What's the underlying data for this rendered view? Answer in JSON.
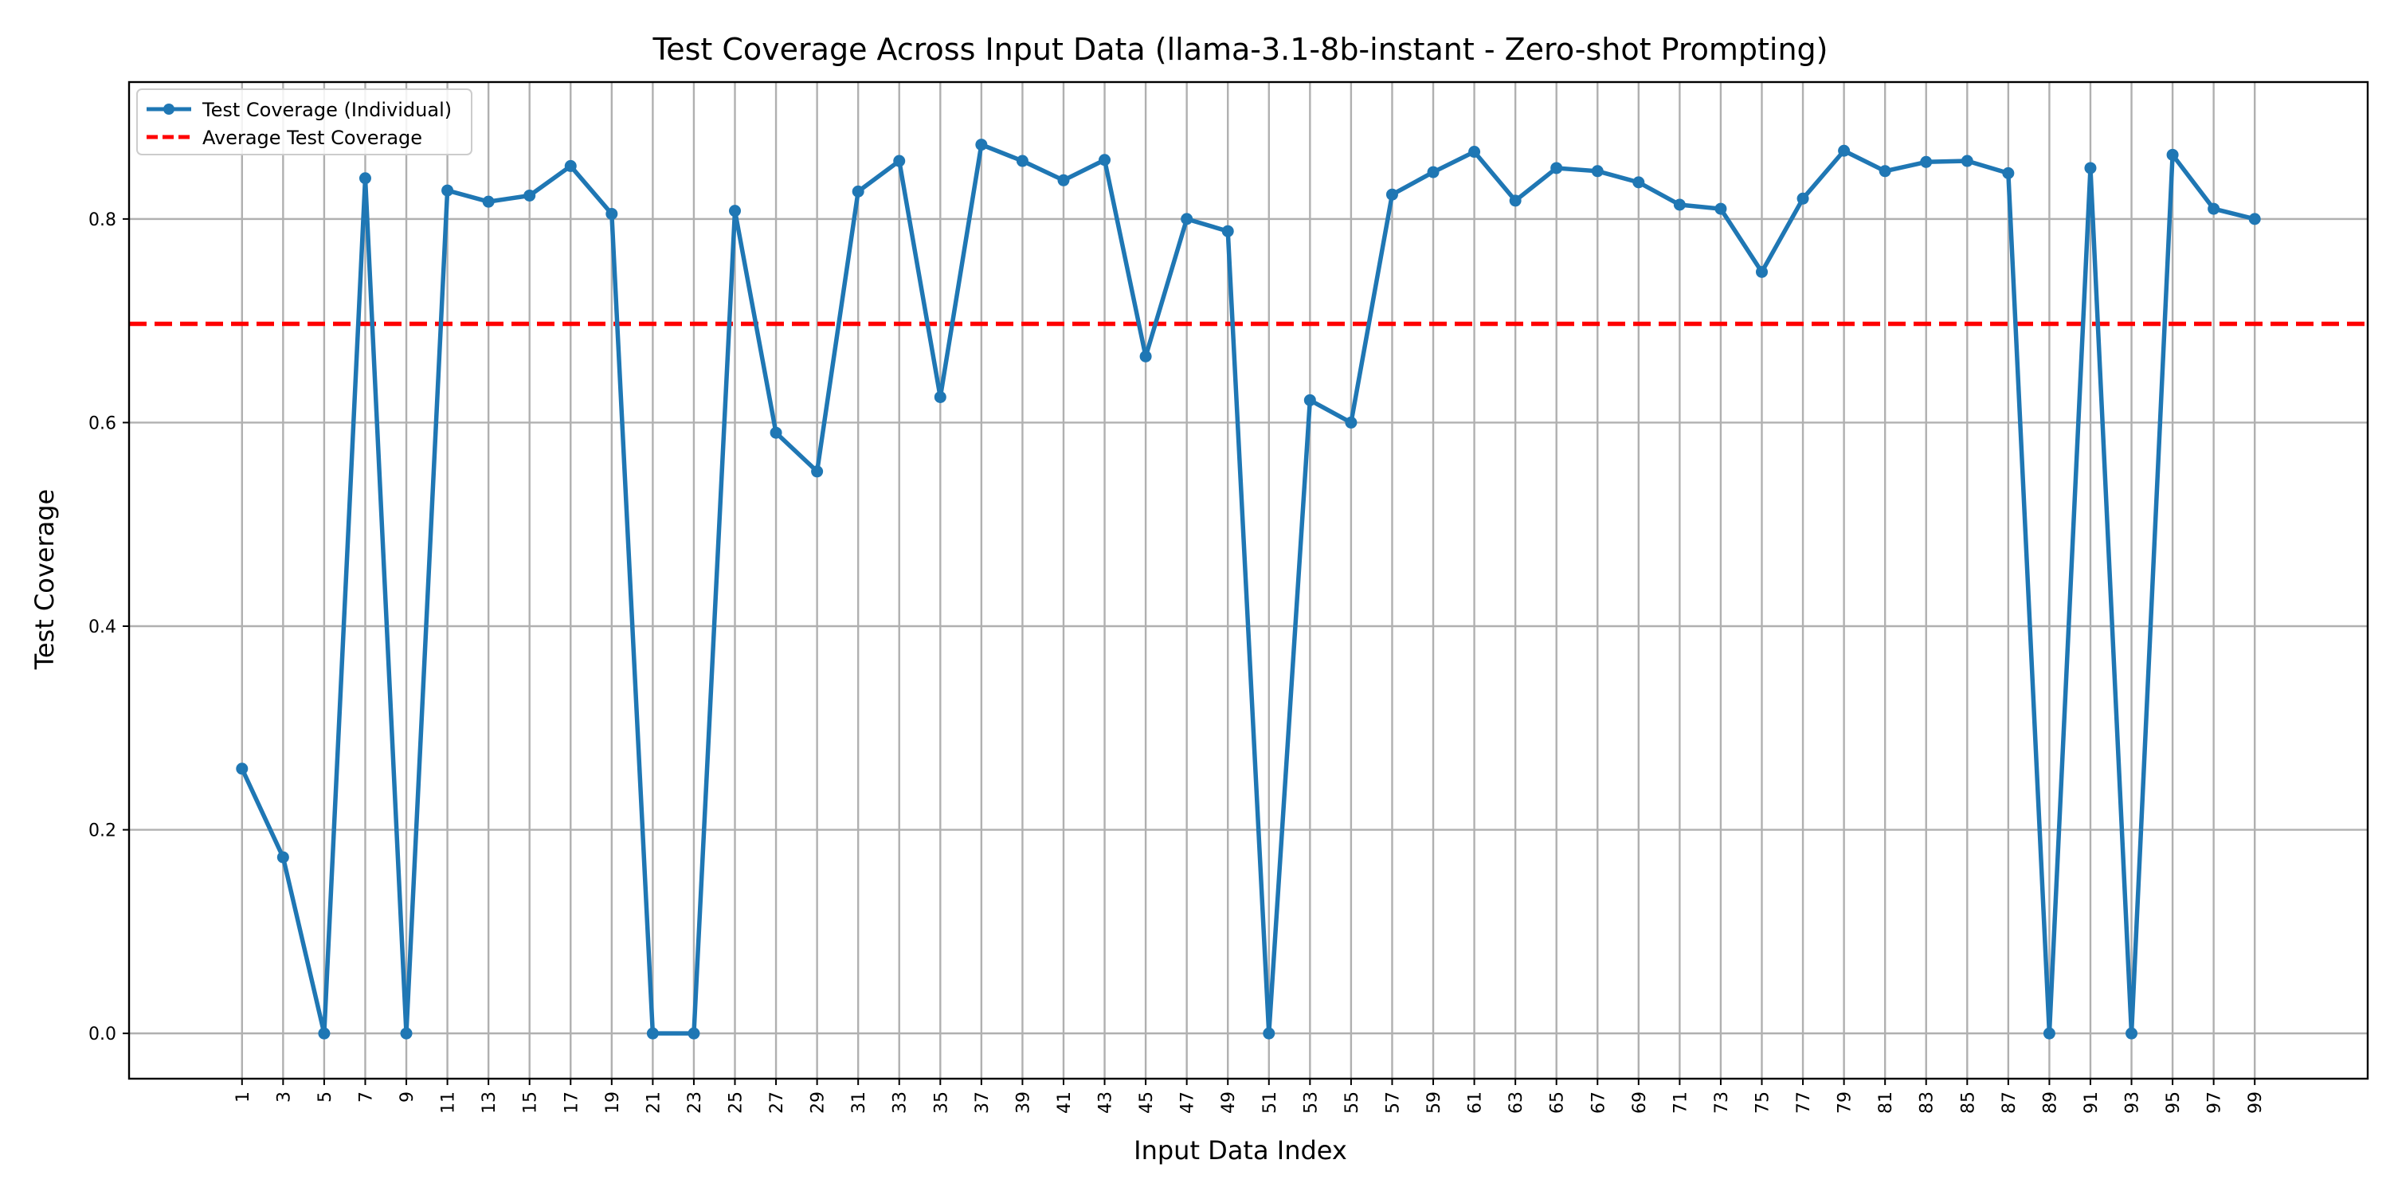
{
  "chart_data": {
    "type": "line",
    "title": "Test Coverage Across Input Data (llama-3.1-8b-instant - Zero-shot Prompting)",
    "xlabel": "Input Data Index",
    "ylabel": "Test Coverage",
    "x": [
      1,
      3,
      5,
      7,
      9,
      11,
      13,
      15,
      17,
      19,
      21,
      23,
      25,
      27,
      29,
      31,
      33,
      35,
      37,
      39,
      41,
      43,
      45,
      47,
      49,
      51,
      53,
      55,
      57,
      59,
      61,
      63,
      65,
      67,
      69,
      71,
      73,
      75,
      77,
      79,
      81,
      83,
      85,
      87,
      89,
      91,
      93,
      95,
      97,
      99
    ],
    "series": [
      {
        "name": "Test Coverage (Individual)",
        "color": "#1f77b4",
        "values": [
          0.26,
          0.173,
          0.0,
          0.84,
          0.0,
          0.828,
          0.817,
          0.823,
          0.852,
          0.805,
          0.0,
          0.0,
          0.808,
          0.59,
          0.552,
          0.827,
          0.857,
          0.625,
          0.873,
          0.857,
          0.838,
          0.858,
          0.665,
          0.8,
          0.788,
          0.0,
          0.622,
          0.6,
          0.824,
          0.846,
          0.866,
          0.818,
          0.85,
          0.847,
          0.836,
          0.814,
          0.81,
          0.748,
          0.82,
          0.867,
          0.847,
          0.856,
          0.857,
          0.845,
          0.0,
          0.85,
          0.0,
          0.863,
          0.81,
          0.8
        ]
      }
    ],
    "average": {
      "name": "Average Test Coverage",
      "value": 0.697,
      "color": "#ff0000"
    },
    "xticks": [
      1,
      3,
      5,
      7,
      9,
      11,
      13,
      15,
      17,
      19,
      21,
      23,
      25,
      27,
      29,
      31,
      33,
      35,
      37,
      39,
      41,
      43,
      45,
      47,
      49,
      51,
      53,
      55,
      57,
      59,
      61,
      63,
      65,
      67,
      69,
      71,
      73,
      75,
      77,
      79,
      81,
      83,
      85,
      87,
      89,
      91,
      93,
      95,
      97,
      99
    ],
    "yticks": [
      0.0,
      0.2,
      0.4,
      0.6,
      0.8
    ],
    "ytick_labels": [
      "0.0",
      "0.2",
      "0.4",
      "0.6",
      "0.8"
    ],
    "xlim": [
      -4.5,
      104.5
    ],
    "ylim": [
      -0.0445,
      0.9345
    ],
    "grid": true,
    "legend_position": "top-left"
  }
}
